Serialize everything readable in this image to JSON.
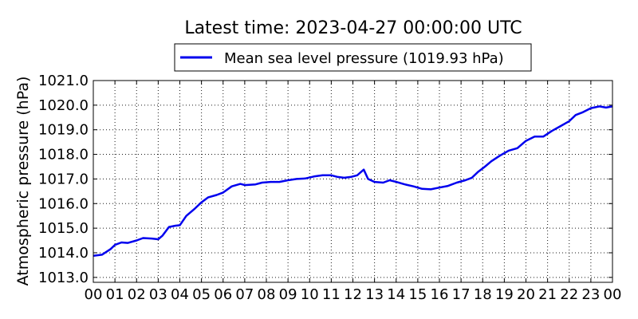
{
  "chart_data": {
    "type": "line",
    "title": "Latest time: 2023-04-27 00:00:00 UTC",
    "ylabel": "Atmospheric pressure (hPa)",
    "xlabel": "",
    "xlim": [
      0,
      24
    ],
    "ylim": [
      1012.8,
      1021.0
    ],
    "grid": true,
    "legend_position": "top",
    "x_ticks": [
      0,
      1,
      2,
      3,
      4,
      5,
      6,
      7,
      8,
      9,
      10,
      11,
      12,
      13,
      14,
      15,
      16,
      17,
      18,
      19,
      20,
      21,
      22,
      23,
      24
    ],
    "x_tick_labels": [
      "00",
      "01",
      "02",
      "03",
      "04",
      "05",
      "06",
      "07",
      "08",
      "09",
      "10",
      "11",
      "12",
      "13",
      "14",
      "15",
      "16",
      "17",
      "18",
      "19",
      "20",
      "21",
      "22",
      "23",
      "00"
    ],
    "y_ticks": [
      1013.0,
      1014.0,
      1015.0,
      1016.0,
      1017.0,
      1018.0,
      1019.0,
      1020.0,
      1021.0
    ],
    "y_tick_labels": [
      "1013.0",
      "1014.0",
      "1015.0",
      "1016.0",
      "1017.0",
      "1018.0",
      "1019.0",
      "1020.0",
      "1021.0"
    ],
    "series": [
      {
        "name": "Mean sea level pressure (1019.93 hPa)",
        "color": "#0000ee",
        "points": [
          [
            0.0,
            1013.88
          ],
          [
            0.4,
            1013.92
          ],
          [
            0.8,
            1014.15
          ],
          [
            1.0,
            1014.32
          ],
          [
            1.3,
            1014.42
          ],
          [
            1.6,
            1014.4
          ],
          [
            2.0,
            1014.5
          ],
          [
            2.3,
            1014.6
          ],
          [
            2.7,
            1014.58
          ],
          [
            3.0,
            1014.55
          ],
          [
            3.2,
            1014.7
          ],
          [
            3.5,
            1015.05
          ],
          [
            3.8,
            1015.1
          ],
          [
            4.0,
            1015.12
          ],
          [
            4.3,
            1015.5
          ],
          [
            4.7,
            1015.8
          ],
          [
            5.0,
            1016.05
          ],
          [
            5.3,
            1016.25
          ],
          [
            5.7,
            1016.35
          ],
          [
            6.0,
            1016.45
          ],
          [
            6.4,
            1016.7
          ],
          [
            6.8,
            1016.8
          ],
          [
            7.0,
            1016.75
          ],
          [
            7.5,
            1016.78
          ],
          [
            7.8,
            1016.85
          ],
          [
            8.2,
            1016.88
          ],
          [
            8.6,
            1016.88
          ],
          [
            9.0,
            1016.95
          ],
          [
            9.4,
            1017.0
          ],
          [
            9.8,
            1017.02
          ],
          [
            10.2,
            1017.1
          ],
          [
            10.6,
            1017.15
          ],
          [
            11.0,
            1017.15
          ],
          [
            11.3,
            1017.08
          ],
          [
            11.6,
            1017.05
          ],
          [
            11.9,
            1017.08
          ],
          [
            12.2,
            1017.15
          ],
          [
            12.5,
            1017.38
          ],
          [
            12.7,
            1017.0
          ],
          [
            13.0,
            1016.88
          ],
          [
            13.4,
            1016.85
          ],
          [
            13.7,
            1016.95
          ],
          [
            14.0,
            1016.88
          ],
          [
            14.4,
            1016.78
          ],
          [
            14.8,
            1016.7
          ],
          [
            15.2,
            1016.6
          ],
          [
            15.6,
            1016.58
          ],
          [
            16.0,
            1016.65
          ],
          [
            16.4,
            1016.72
          ],
          [
            16.8,
            1016.85
          ],
          [
            17.2,
            1016.95
          ],
          [
            17.5,
            1017.05
          ],
          [
            17.8,
            1017.3
          ],
          [
            18.1,
            1017.5
          ],
          [
            18.4,
            1017.72
          ],
          [
            18.8,
            1017.95
          ],
          [
            19.2,
            1018.15
          ],
          [
            19.6,
            1018.25
          ],
          [
            20.0,
            1018.55
          ],
          [
            20.4,
            1018.72
          ],
          [
            20.8,
            1018.72
          ],
          [
            21.2,
            1018.95
          ],
          [
            21.6,
            1019.15
          ],
          [
            22.0,
            1019.35
          ],
          [
            22.3,
            1019.6
          ],
          [
            22.6,
            1019.7
          ],
          [
            23.0,
            1019.88
          ],
          [
            23.4,
            1019.95
          ],
          [
            23.7,
            1019.9
          ],
          [
            24.0,
            1019.95
          ]
        ]
      }
    ]
  }
}
